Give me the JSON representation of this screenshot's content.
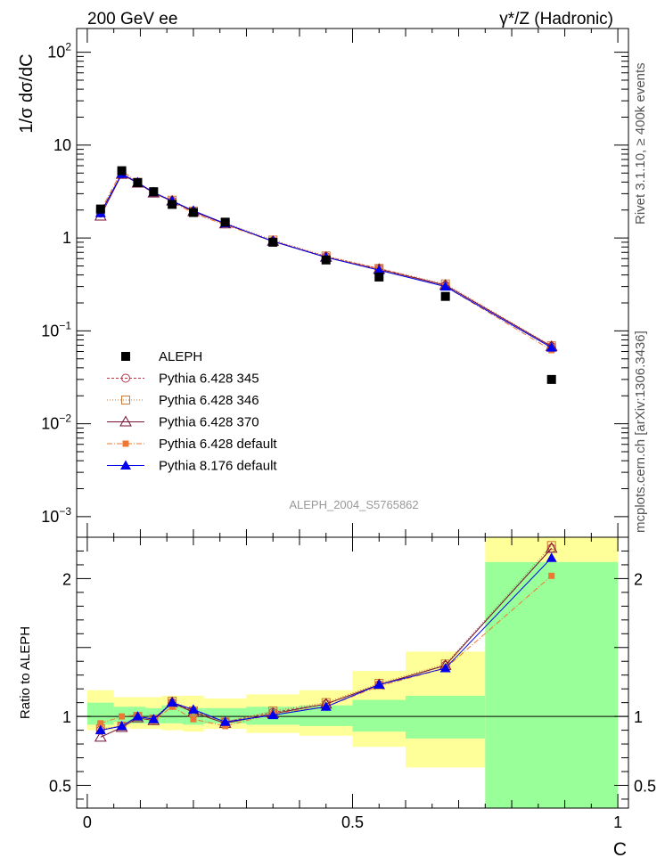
{
  "header": {
    "left_label": "200 GeV ee",
    "right_label": "γ*/Z (Hadronic)"
  },
  "side_labels": {
    "rivet": "Rivet 3.1.10, ≥ 400k events",
    "mcplots": "mcplots.cern.ch [arXiv:1306.3436]"
  },
  "chart_data": {
    "type": "scatter",
    "analysis_label": "ALEPH_2004_S5765862",
    "main": {
      "ylabel": "1/σ  dσ/dC",
      "yscale": "log",
      "ylim": [
        0.0006,
        180
      ],
      "xlim": [
        -0.02,
        1.02
      ],
      "y_ticks": [
        {
          "value": 100,
          "base": "10",
          "exp": "2"
        },
        {
          "value": 10,
          "base": "10",
          "exp": ""
        },
        {
          "value": 1,
          "base": "1",
          "exp": ""
        },
        {
          "value": 0.1,
          "base": "10",
          "exp": "−1"
        },
        {
          "value": 0.01,
          "base": "10",
          "exp": "−2"
        },
        {
          "value": 0.001,
          "base": "10",
          "exp": "−3"
        }
      ]
    },
    "ratio": {
      "ylabel": "Ratio to ALEPH",
      "ylim": [
        0.335,
        2.3
      ],
      "reference": 1.0,
      "y_ticks": [
        {
          "value": 0.5,
          "label": "0.5"
        },
        {
          "value": 1,
          "label": "1"
        },
        {
          "value": 2,
          "label": "2"
        }
      ]
    },
    "xlabel": "C",
    "x_ticks": [
      {
        "value": 0,
        "label": "0"
      },
      {
        "value": 0.5,
        "label": "0.5"
      },
      {
        "value": 1,
        "label": "1"
      }
    ],
    "bins": [
      {
        "lo": 0.0,
        "hi": 0.05,
        "x": 0.025
      },
      {
        "lo": 0.05,
        "hi": 0.08,
        "x": 0.065
      },
      {
        "lo": 0.08,
        "hi": 0.11,
        "x": 0.095
      },
      {
        "lo": 0.11,
        "hi": 0.14,
        "x": 0.125
      },
      {
        "lo": 0.14,
        "hi": 0.18,
        "x": 0.16
      },
      {
        "lo": 0.18,
        "hi": 0.22,
        "x": 0.2
      },
      {
        "lo": 0.22,
        "hi": 0.3,
        "x": 0.26
      },
      {
        "lo": 0.3,
        "hi": 0.4,
        "x": 0.35
      },
      {
        "lo": 0.4,
        "hi": 0.5,
        "x": 0.45
      },
      {
        "lo": 0.5,
        "hi": 0.6,
        "x": 0.55
      },
      {
        "lo": 0.6,
        "hi": 0.75,
        "x": 0.675
      },
      {
        "lo": 0.75,
        "hi": 1.0,
        "x": 0.875
      }
    ],
    "bands": {
      "green": [
        [
          0.94,
          1.1
        ],
        [
          0.96,
          1.07
        ],
        [
          0.95,
          1.07
        ],
        [
          0.95,
          1.06
        ],
        [
          0.95,
          1.08
        ],
        [
          0.94,
          1.06
        ],
        [
          0.95,
          1.06
        ],
        [
          0.94,
          1.07
        ],
        [
          0.93,
          1.08
        ],
        [
          0.89,
          1.12
        ],
        [
          0.84,
          1.15
        ],
        [
          0.0,
          2.12
        ]
      ],
      "yellow": [
        [
          0.9,
          1.19
        ],
        [
          0.92,
          1.14
        ],
        [
          0.91,
          1.14
        ],
        [
          0.91,
          1.14
        ],
        [
          0.9,
          1.15
        ],
        [
          0.89,
          1.15
        ],
        [
          0.91,
          1.13
        ],
        [
          0.88,
          1.16
        ],
        [
          0.86,
          1.19
        ],
        [
          0.78,
          1.33
        ],
        [
          0.63,
          1.47
        ],
        [
          0.0,
          2.32
        ]
      ]
    },
    "legend": {
      "placement": "lower-left"
    },
    "series": [
      {
        "name": "ALEPH",
        "kind": "data",
        "color": "#000000",
        "marker": "square-filled",
        "values": [
          2.05,
          5.3,
          3.95,
          3.15,
          2.3,
          1.88,
          1.48,
          0.9,
          0.58,
          0.38,
          0.235,
          0.03
        ],
        "ratio": [
          1,
          1,
          1,
          1,
          1,
          1,
          1,
          1,
          1,
          1,
          1,
          1
        ]
      },
      {
        "name": "Pythia 6.428 345",
        "kind": "mc",
        "color": "#bb3344",
        "dash": "3,2",
        "marker": "circle-open",
        "values": [
          1.85,
          4.9,
          3.95,
          3.05,
          2.5,
          1.93,
          1.42,
          0.93,
          0.63,
          0.47,
          0.31,
          0.068
        ],
        "ratio": [
          0.9,
          0.93,
          1.0,
          0.98,
          1.1,
          1.04,
          0.96,
          1.03,
          1.09,
          1.23,
          1.37,
          2.22
        ]
      },
      {
        "name": "Pythia 6.428 346",
        "kind": "mc",
        "color": "#cc7733",
        "dash": "1,2",
        "marker": "square-open",
        "values": [
          1.9,
          5.0,
          3.98,
          3.1,
          2.55,
          1.95,
          1.45,
          0.95,
          0.64,
          0.47,
          0.32,
          0.069
        ],
        "ratio": [
          0.91,
          0.93,
          1.0,
          0.98,
          1.11,
          1.04,
          0.96,
          1.04,
          1.1,
          1.24,
          1.38,
          2.24
        ]
      },
      {
        "name": "Pythia 6.428 370",
        "kind": "mc",
        "color": "#771133",
        "dash": "",
        "marker": "triangle-open",
        "values": [
          1.72,
          4.85,
          3.9,
          3.05,
          2.5,
          1.92,
          1.42,
          0.92,
          0.62,
          0.46,
          0.31,
          0.068
        ],
        "ratio": [
          0.85,
          0.92,
          0.99,
          0.97,
          1.1,
          1.03,
          0.95,
          1.02,
          1.09,
          1.23,
          1.37,
          2.22
        ]
      },
      {
        "name": "Pythia 6.428 default",
        "kind": "mc",
        "color": "#ee7733",
        "dash": "6,2,1,2",
        "marker": "square-filled-small",
        "values": [
          1.95,
          5.3,
          4.0,
          3.05,
          2.45,
          1.85,
          1.38,
          0.92,
          0.62,
          0.46,
          0.3,
          0.062
        ],
        "ratio": [
          0.95,
          1.0,
          1.01,
          0.97,
          1.07,
          0.98,
          0.93,
          1.02,
          1.07,
          1.22,
          1.35,
          2.02
        ]
      },
      {
        "name": "Pythia 8.176 default",
        "kind": "mc",
        "color": "#0000ee",
        "dash": "",
        "marker": "triangle-filled",
        "values": [
          1.85,
          4.9,
          3.95,
          3.1,
          2.5,
          1.97,
          1.43,
          0.92,
          0.62,
          0.45,
          0.3,
          0.066
        ],
        "ratio": [
          0.9,
          0.93,
          1.0,
          0.98,
          1.1,
          1.05,
          0.96,
          1.01,
          1.07,
          1.23,
          1.35,
          2.15
        ]
      }
    ]
  }
}
